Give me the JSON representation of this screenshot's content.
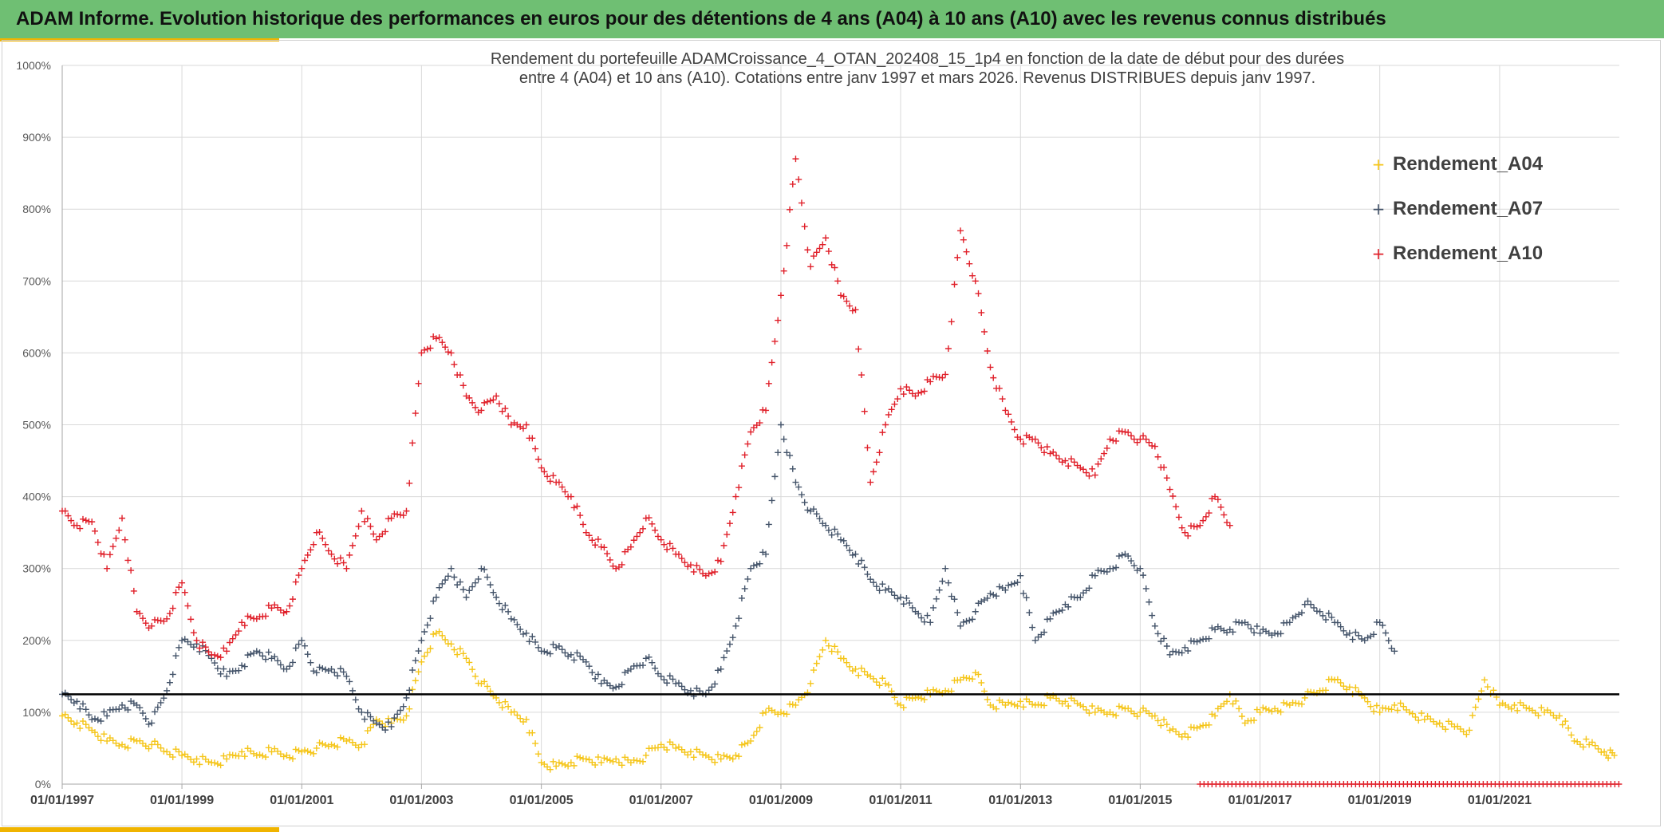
{
  "header": {
    "title": "ADAM Informe. Evolution historique des performances en euros pour des détentions de 4 ans (A04) à 10 ans (A10) avec les revenus connus distribués"
  },
  "colors": {
    "header_bg": "#6fbf73",
    "accent": "#f0b400",
    "A04": "#f5c518",
    "A07": "#44546a",
    "A10": "#e0202a",
    "reference_line": "#000000"
  },
  "chart_data": {
    "type": "scatter",
    "title": "Rendement du portefeuille ADAMCroissance_4_OTAN_202408_15_1p4  en fonction de la date de début pour des durées entre 4 (A04) et 10 ans (A10). Cotations entre janv 1997 et mars 2026. Revenus DISTRIBUES depuis janv 1997.",
    "title_lines": [
      "Rendement du portefeuille ADAMCroissance_4_OTAN_202408_15_1p4  en fonction de la date de début pour des durées",
      "entre 4 (A04) et 10 ans (A10). Cotations entre janv 1997 et mars 2026. Revenus DISTRIBUES depuis janv 1997."
    ],
    "marker": "+",
    "xlim": [
      "1997-01-01",
      "2023-01-01"
    ],
    "ylim": [
      0,
      1000
    ],
    "x_tick_labels": [
      "01/01/1997",
      "01/01/1999",
      "01/01/2001",
      "01/01/2003",
      "01/01/2005",
      "01/01/2007",
      "01/01/2009",
      "01/01/2011",
      "01/01/2013",
      "01/01/2015",
      "01/01/2017",
      "01/01/2019",
      "01/01/2021"
    ],
    "y_tick_labels": [
      "0%",
      "100%",
      "200%",
      "300%",
      "400%",
      "500%",
      "600%",
      "700%",
      "800%",
      "900%",
      "1000%"
    ],
    "grid": true,
    "legend_position": "top-right",
    "reference_line_y": 125,
    "series": [
      {
        "name": "Rendement_A04",
        "x": [
          "1997-01-01",
          "1997-04-01",
          "1997-07-01",
          "1997-10-01",
          "1998-01-01",
          "1998-04-01",
          "1998-07-01",
          "1998-10-01",
          "1999-01-01",
          "1999-04-01",
          "1999-07-01",
          "1999-10-01",
          "2000-01-01",
          "2000-04-01",
          "2000-07-01",
          "2000-10-01",
          "2001-01-01",
          "2001-04-01",
          "2001-07-01",
          "2001-10-01",
          "2002-01-01",
          "2002-04-01",
          "2002-07-01",
          "2002-10-01",
          "2003-01-01",
          "2003-04-01",
          "2003-07-01",
          "2003-10-01",
          "2004-01-01",
          "2004-04-01",
          "2004-07-01",
          "2004-10-01",
          "2005-01-01",
          "2005-04-01",
          "2005-07-01",
          "2005-10-01",
          "2006-01-01",
          "2006-04-01",
          "2006-07-01",
          "2006-10-01",
          "2007-01-01",
          "2007-04-01",
          "2007-07-01",
          "2007-10-01",
          "2008-01-01",
          "2008-04-01",
          "2008-07-01",
          "2008-10-01",
          "2009-01-01",
          "2009-04-01",
          "2009-07-01",
          "2009-10-01",
          "2010-01-01",
          "2010-04-01",
          "2010-07-01",
          "2010-10-01",
          "2011-01-01",
          "2011-04-01",
          "2011-07-01",
          "2011-10-01",
          "2012-01-01",
          "2012-04-01",
          "2012-07-01",
          "2012-10-01",
          "2013-01-01",
          "2013-04-01",
          "2013-07-01",
          "2013-10-01",
          "2014-01-01",
          "2014-04-01",
          "2014-07-01",
          "2014-10-01",
          "2015-01-01",
          "2015-04-01",
          "2015-07-01",
          "2015-10-01",
          "2016-01-01",
          "2016-04-01",
          "2016-07-01",
          "2016-10-01",
          "2017-01-01",
          "2017-04-01",
          "2017-07-01",
          "2017-10-01",
          "2018-01-01",
          "2018-04-01",
          "2018-07-01",
          "2018-10-01",
          "2019-01-01",
          "2019-04-01",
          "2019-07-01",
          "2019-10-01",
          "2020-01-01",
          "2020-04-01",
          "2020-07-01",
          "2020-10-01",
          "2021-01-01",
          "2021-04-01",
          "2021-07-01",
          "2021-10-01",
          "2022-01-01",
          "2022-04-01",
          "2022-07-01"
        ],
        "y": [
          95,
          85,
          75,
          60,
          55,
          60,
          55,
          45,
          40,
          35,
          30,
          35,
          45,
          40,
          45,
          40,
          45,
          50,
          55,
          60,
          55,
          90,
          85,
          95,
          170,
          210,
          195,
          175,
          140,
          120,
          100,
          90,
          30,
          25,
          30,
          35,
          30,
          35,
          30,
          40,
          55,
          50,
          45,
          40,
          35,
          40,
          60,
          100,
          100,
          110,
          140,
          200,
          175,
          160,
          150,
          140,
          110,
          120,
          125,
          130,
          145,
          155,
          110,
          110,
          115,
          110,
          120,
          115,
          110,
          100,
          100,
          105,
          100,
          95,
          75,
          70,
          80,
          95,
          125,
          85,
          100,
          105,
          110,
          120,
          130,
          145,
          135,
          120,
          100,
          110,
          100,
          90,
          85,
          80,
          75,
          145,
          110,
          110,
          105,
          100,
          95,
          60,
          55
        ],
        "x_extra": [
          "2022-10-01",
          "2022-12-01"
        ],
        "y_extra": [
          45,
          40
        ]
      },
      {
        "name": "Rendement_A07",
        "x": [
          "1997-01-01",
          "1997-04-01",
          "1997-07-01",
          "1997-10-01",
          "1998-01-01",
          "1998-04-01",
          "1998-07-01",
          "1998-10-01",
          "1999-01-01",
          "1999-04-01",
          "1999-07-01",
          "1999-10-01",
          "2000-01-01",
          "2000-04-01",
          "2000-07-01",
          "2000-10-01",
          "2001-01-01",
          "2001-04-01",
          "2001-07-01",
          "2001-10-01",
          "2002-01-01",
          "2002-04-01",
          "2002-07-01",
          "2002-10-01",
          "2003-01-01",
          "2003-04-01",
          "2003-07-01",
          "2003-10-01",
          "2004-01-01",
          "2004-04-01",
          "2004-07-01",
          "2004-10-01",
          "2005-01-01",
          "2005-04-01",
          "2005-07-01",
          "2005-10-01",
          "2006-01-01",
          "2006-04-01",
          "2006-07-01",
          "2006-10-01",
          "2007-01-01",
          "2007-04-01",
          "2007-07-01",
          "2007-10-01",
          "2008-01-01",
          "2008-04-01",
          "2008-07-01",
          "2008-10-01",
          "2009-01-01",
          "2009-04-01",
          "2009-07-01",
          "2009-10-01",
          "2010-01-01",
          "2010-04-01",
          "2010-07-01",
          "2010-10-01",
          "2011-01-01",
          "2011-04-01",
          "2011-07-01",
          "2011-10-01",
          "2012-01-01",
          "2012-04-01",
          "2012-07-01",
          "2012-10-01",
          "2013-01-01",
          "2013-04-01",
          "2013-07-01",
          "2013-10-01",
          "2014-01-01",
          "2014-04-01",
          "2014-07-01",
          "2014-10-01",
          "2015-01-01",
          "2015-04-01",
          "2015-07-01",
          "2015-10-01",
          "2016-01-01",
          "2016-04-01",
          "2016-07-01",
          "2016-10-01",
          "2017-01-01",
          "2017-04-01",
          "2017-07-01",
          "2017-10-01",
          "2018-01-01",
          "2018-04-01",
          "2018-07-01",
          "2018-10-01",
          "2019-01-01",
          "2019-04-01"
        ],
        "y": [
          125,
          115,
          90,
          95,
          110,
          110,
          85,
          130,
          200,
          195,
          175,
          150,
          165,
          185,
          175,
          160,
          200,
          155,
          160,
          150,
          100,
          85,
          80,
          120,
          200,
          260,
          300,
          260,
          300,
          260,
          230,
          210,
          185,
          190,
          180,
          170,
          140,
          135,
          160,
          175,
          150,
          140,
          130,
          125,
          160,
          220,
          300,
          320,
          500,
          420,
          380,
          360,
          340,
          320,
          285,
          270,
          260,
          240,
          225,
          300,
          220,
          240,
          265,
          270,
          290,
          200,
          230,
          250,
          260,
          290,
          300,
          320,
          300,
          220,
          180,
          190,
          200,
          215,
          215,
          225,
          210,
          210,
          225,
          250,
          240,
          225,
          210,
          200,
          225,
          185
        ]
      },
      {
        "name": "Rendement_A10",
        "x": [
          "1997-01-01",
          "1997-04-01",
          "1997-07-01",
          "1997-10-01",
          "1998-01-01",
          "1998-04-01",
          "1998-07-01",
          "1998-10-01",
          "1999-01-01",
          "1999-04-01",
          "1999-07-01",
          "1999-10-01",
          "2000-01-01",
          "2000-04-01",
          "2000-07-01",
          "2000-10-01",
          "2001-01-01",
          "2001-04-01",
          "2001-07-01",
          "2001-10-01",
          "2002-01-01",
          "2002-04-01",
          "2002-07-01",
          "2002-10-01",
          "2003-01-01",
          "2003-04-01",
          "2003-07-01",
          "2003-10-01",
          "2004-01-01",
          "2004-04-01",
          "2004-07-01",
          "2004-10-01",
          "2005-01-01",
          "2005-04-01",
          "2005-07-01",
          "2005-10-01",
          "2006-01-01",
          "2006-04-01",
          "2006-07-01",
          "2006-10-01",
          "2007-01-01",
          "2007-04-01",
          "2007-07-01",
          "2007-10-01",
          "2008-01-01",
          "2008-04-01",
          "2008-07-01",
          "2008-10-01",
          "2009-01-01",
          "2009-04-01",
          "2009-07-01",
          "2009-10-01",
          "2010-01-01",
          "2010-04-01",
          "2010-07-01",
          "2010-10-01",
          "2011-01-01",
          "2011-04-01",
          "2011-07-01",
          "2011-10-01",
          "2012-01-01",
          "2012-04-01",
          "2012-07-01",
          "2012-10-01",
          "2013-01-01",
          "2013-04-01",
          "2013-07-01",
          "2013-10-01",
          "2014-01-01",
          "2014-04-01",
          "2014-07-01",
          "2014-10-01",
          "2015-01-01",
          "2015-04-01",
          "2015-07-01",
          "2015-10-01",
          "2016-01-01",
          "2016-04-01"
        ],
        "y": [
          380,
          360,
          365,
          300,
          370,
          240,
          220,
          230,
          280,
          200,
          180,
          185,
          225,
          230,
          245,
          240,
          300,
          350,
          320,
          300,
          380,
          340,
          370,
          380,
          600,
          620,
          600,
          540,
          520,
          540,
          500,
          500,
          440,
          420,
          400,
          350,
          330,
          300,
          330,
          370,
          340,
          320,
          305,
          290,
          310,
          400,
          490,
          520,
          680,
          870,
          720,
          760,
          680,
          660,
          420,
          500,
          550,
          540,
          560,
          570,
          770,
          700,
          580,
          520,
          480,
          480,
          460,
          450,
          440,
          430,
          480,
          490,
          480,
          470,
          410,
          350,
          360,
          400
        ],
        "x_extra": [
          "2016-07-01"
        ],
        "y_extra": [
          360
        ],
        "baseline_zero_from": "2016-01-01",
        "baseline_zero_to": "2023-01-01"
      }
    ]
  }
}
